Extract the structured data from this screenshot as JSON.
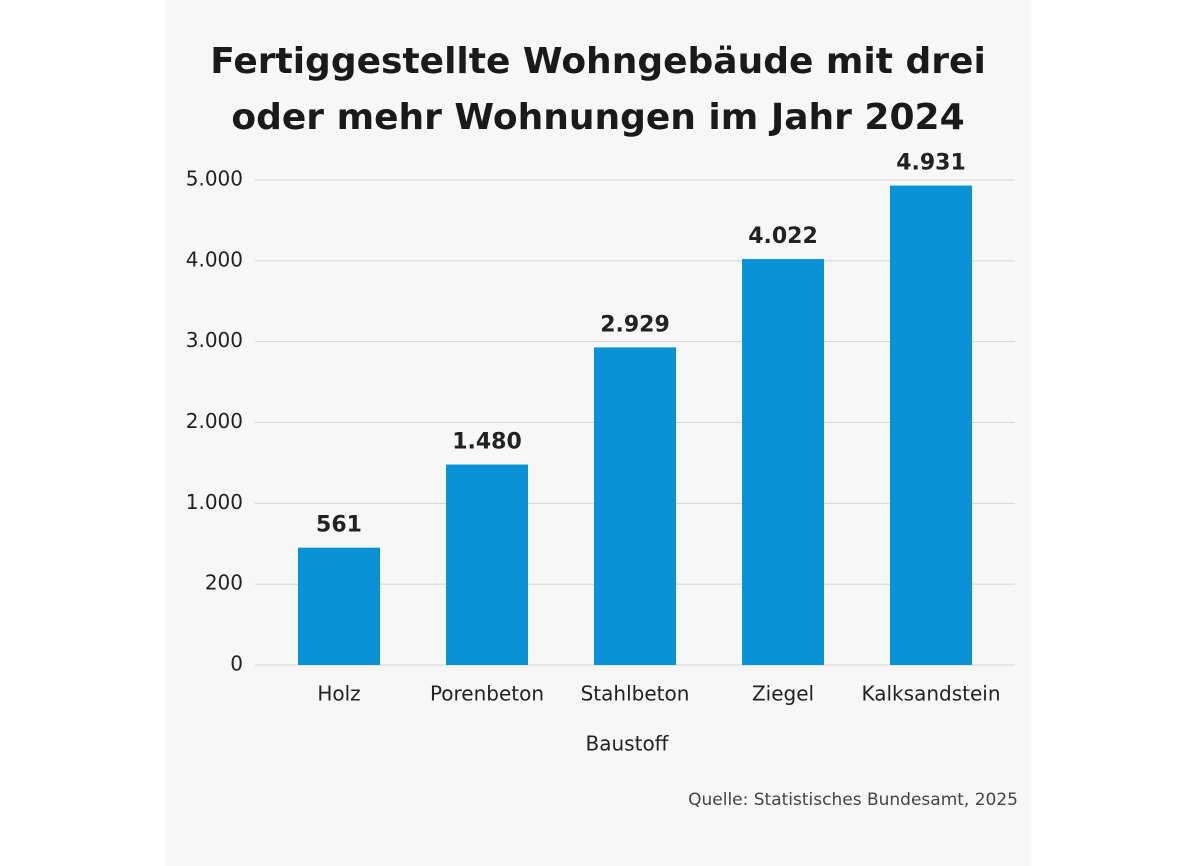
{
  "chart_data": {
    "type": "bar",
    "title": "Fertiggestellte Wohngebäude mit drei oder mehr Wohnungen im Jahr 2024",
    "x_label": "Baustoff",
    "source": "Quelle: Statistisches Bundesamt, 2025",
    "categories": [
      "Holz",
      "Porenbeton",
      "Stahlbeton",
      "Ziegel",
      "Kalksandstein"
    ],
    "values": [
      561,
      1480,
      2929,
      4022,
      4931
    ],
    "value_labels": [
      "561",
      "1.480",
      "2.929",
      "4.022",
      "4.931"
    ],
    "color": "#0a92d6",
    "ylim": [
      0,
      5000
    ],
    "yticks": [
      0,
      200,
      {
        "value": 1000,
        "label": "1.000"
      },
      {
        "value": 2000,
        "label": "2.000"
      },
      {
        "value": 3000,
        "label": "3.000"
      },
      {
        "value": 4000,
        "label": "4.000"
      },
      {
        "value": 5000,
        "label": "5.000"
      }
    ],
    "grid": true
  }
}
